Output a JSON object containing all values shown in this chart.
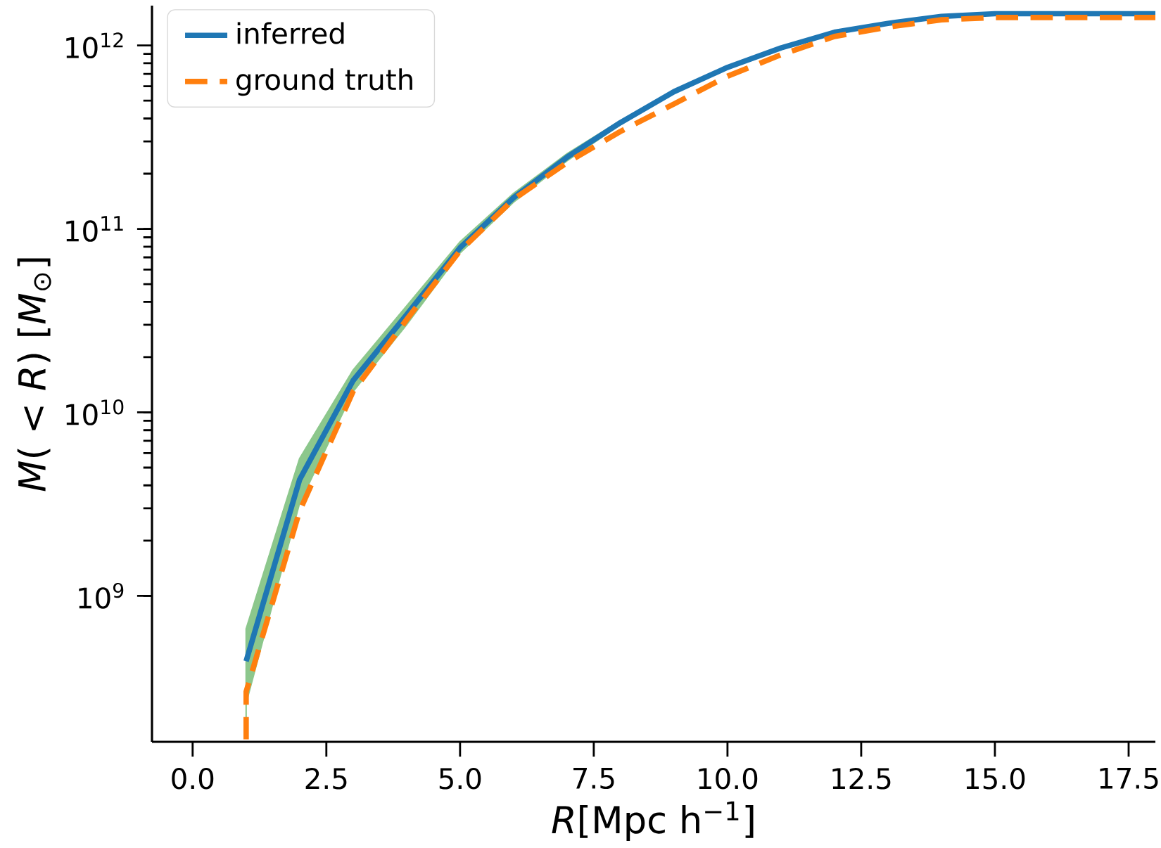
{
  "chart_data": {
    "type": "line",
    "xlabel": "*R*[Mpc h$^{−1}$]",
    "ylabel": "*M*( < *R*) [*M*$_{⊙}$]",
    "log": "y",
    "legend": "top left",
    "grid": false,
    "xlim": [
      -0.76,
      18.0
    ],
    "ylim": [
      160000000.0,
      1650000000000.0
    ],
    "xticks": [
      {
        "value": 0,
        "label": "0.0"
      },
      2.5,
      {
        "value": 5,
        "label": "5.0"
      },
      7.5,
      {
        "value": 10,
        "label": "10.0"
      },
      12.5,
      {
        "value": 15,
        "label": "15.0"
      },
      17.5
    ],
    "yticks": [
      {
        "value": 1000000000.0,
        "label": "10$^{9}$"
      },
      {
        "value": 10000000000.0,
        "label": "10$^{10}$"
      },
      {
        "value": 100000000000.0,
        "label": "10$^{11}$"
      },
      {
        "value": 1000000000000.0,
        "label": "10$^{12}$"
      }
    ],
    "series": [
      {
        "name": "inferred",
        "color": "#1f77b4",
        "line_style": "solid",
        "x": [
          1,
          1,
          2,
          3,
          4,
          5,
          6,
          7,
          8,
          9,
          10,
          11,
          12,
          13,
          14,
          15,
          16,
          17,
          18
        ],
        "values": [
          null,
          440000000.0,
          4300000000.0,
          14900000000.0,
          34000000000.0,
          79000000000.0,
          148000000000.0,
          246000000000.0,
          380000000000.0,
          560000000000.0,
          760000000000.0,
          970000000000.0,
          1180000000000.0,
          1320000000000.0,
          1440000000000.0,
          1490000000000.0,
          1490000000000.0,
          1490000000000.0,
          1490000000000.0
        ],
        "lower": [
          180000000.0,
          260000000.0,
          3200000000.0,
          13000000000.0,
          30000000000.0,
          74000000000.0,
          140000000000.0,
          235000000000.0,
          370000000000.0,
          550000000000.0,
          750000000000.0,
          960000000000.0,
          1170000000000.0,
          1310000000000.0,
          1430000000000.0,
          1480000000000.0,
          1480000000000.0,
          1480000000000.0,
          1480000000000.0
        ],
        "upper": [
          220000000.0,
          660000000.0,
          5600000000.0,
          17000000000.0,
          38000000000.0,
          85000000000.0,
          156000000000.0,
          257000000000.0,
          390000000000.0,
          570000000000.0,
          770000000000.0,
          980000000000.0,
          1190000000000.0,
          1330000000000.0,
          1450000000000.0,
          1500000000000.0,
          1500000000000.0,
          1500000000000.0,
          1500000000000.0
        ]
      },
      {
        "name": "ground truth",
        "color": "#ff7f0e",
        "line_style": "dashed",
        "x": [
          1,
          1,
          2,
          3,
          4,
          5,
          6,
          7,
          8,
          9,
          10,
          11,
          12,
          13,
          14,
          15,
          16,
          17,
          18
        ],
        "values": [
          165000000.0,
          300000000.0,
          2900000000.0,
          13000000000.0,
          32000000000.0,
          76000000000.0,
          145000000000.0,
          230000000000.0,
          340000000000.0,
          480000000000.0,
          680000000000.0,
          890000000000.0,
          1120000000000.0,
          1260000000000.0,
          1380000000000.0,
          1420000000000.0,
          1420000000000.0,
          1420000000000.0,
          1420000000000.0
        ]
      }
    ]
  }
}
